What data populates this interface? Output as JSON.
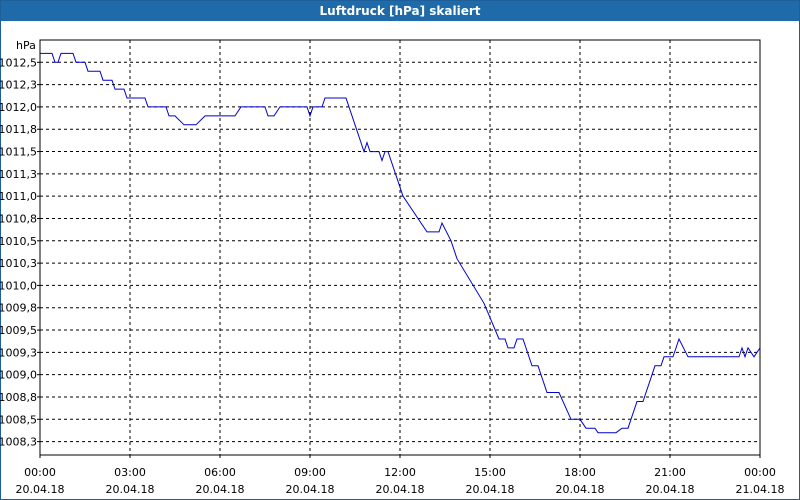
{
  "window": {
    "title": "Luftdruck [hPa] skaliert"
  },
  "chart_data": {
    "type": "line",
    "title": "Luftdruck [hPa] skaliert",
    "ylabel": "hPa",
    "xlabel": "",
    "ylim": [
      1008.1,
      1012.75
    ],
    "xlim": [
      0,
      24
    ],
    "grid": true,
    "line_color": "#0000cc",
    "grid_color": "#000000",
    "y_ticks": [
      {
        "value": 1012.5,
        "label": "1012,5"
      },
      {
        "value": 1012.25,
        "label": "1012,3"
      },
      {
        "value": 1012.0,
        "label": "1012,0"
      },
      {
        "value": 1011.75,
        "label": "1011,8"
      },
      {
        "value": 1011.5,
        "label": "1011,5"
      },
      {
        "value": 1011.25,
        "label": "1011,3"
      },
      {
        "value": 1011.0,
        "label": "1011,0"
      },
      {
        "value": 1010.75,
        "label": "1010,8"
      },
      {
        "value": 1010.5,
        "label": "1010,5"
      },
      {
        "value": 1010.25,
        "label": "1010,3"
      },
      {
        "value": 1010.0,
        "label": "1010,0"
      },
      {
        "value": 1009.75,
        "label": "1009,8"
      },
      {
        "value": 1009.5,
        "label": "1009,5"
      },
      {
        "value": 1009.25,
        "label": "1009,3"
      },
      {
        "value": 1009.0,
        "label": "1009,0"
      },
      {
        "value": 1008.75,
        "label": "1008,8"
      },
      {
        "value": 1008.5,
        "label": "1008,5"
      },
      {
        "value": 1008.25,
        "label": "1008,3"
      }
    ],
    "x_ticks": [
      {
        "value": 0,
        "time": "00:00",
        "date": "20.04.18"
      },
      {
        "value": 3,
        "time": "03:00",
        "date": "20.04.18"
      },
      {
        "value": 6,
        "time": "06:00",
        "date": "20.04.18"
      },
      {
        "value": 9,
        "time": "09:00",
        "date": "20.04.18"
      },
      {
        "value": 12,
        "time": "12:00",
        "date": "20.04.18"
      },
      {
        "value": 15,
        "time": "15:00",
        "date": "20.04.18"
      },
      {
        "value": 18,
        "time": "18:00",
        "date": "20.04.18"
      },
      {
        "value": 21,
        "time": "21:00",
        "date": "20.04.18"
      },
      {
        "value": 24,
        "time": "00:00",
        "date": "21.04.18"
      }
    ],
    "series": [
      {
        "points": [
          [
            0,
            1012.6
          ],
          [
            0.4,
            1012.6
          ],
          [
            0.5,
            1012.5
          ],
          [
            0.6,
            1012.5
          ],
          [
            0.7,
            1012.6
          ],
          [
            1.1,
            1012.6
          ],
          [
            1.2,
            1012.5
          ],
          [
            1.5,
            1012.5
          ],
          [
            1.6,
            1012.4
          ],
          [
            2.0,
            1012.4
          ],
          [
            2.1,
            1012.3
          ],
          [
            2.4,
            1012.3
          ],
          [
            2.5,
            1012.2
          ],
          [
            2.8,
            1012.2
          ],
          [
            2.9,
            1012.1
          ],
          [
            3.5,
            1012.1
          ],
          [
            3.6,
            1012.0
          ],
          [
            4.2,
            1012.0
          ],
          [
            4.3,
            1011.9
          ],
          [
            4.5,
            1011.9
          ],
          [
            4.8,
            1011.8
          ],
          [
            5.2,
            1011.8
          ],
          [
            5.5,
            1011.9
          ],
          [
            6.5,
            1011.9
          ],
          [
            6.7,
            1012.0
          ],
          [
            7.5,
            1012.0
          ],
          [
            7.6,
            1011.9
          ],
          [
            7.8,
            1011.9
          ],
          [
            8.0,
            1012.0
          ],
          [
            8.9,
            1012.0
          ],
          [
            9.0,
            1011.9
          ],
          [
            9.1,
            1012.0
          ],
          [
            9.4,
            1012.0
          ],
          [
            9.5,
            1012.1
          ],
          [
            10.2,
            1012.1
          ],
          [
            10.6,
            1011.7
          ],
          [
            10.7,
            1011.6
          ],
          [
            10.8,
            1011.5
          ],
          [
            10.9,
            1011.6
          ],
          [
            11.0,
            1011.5
          ],
          [
            11.3,
            1011.5
          ],
          [
            11.4,
            1011.4
          ],
          [
            11.5,
            1011.5
          ],
          [
            11.6,
            1011.5
          ],
          [
            11.9,
            1011.2
          ],
          [
            12.1,
            1011.0
          ],
          [
            12.9,
            1010.6
          ],
          [
            13.3,
            1010.6
          ],
          [
            13.4,
            1010.7
          ],
          [
            13.7,
            1010.5
          ],
          [
            13.9,
            1010.3
          ],
          [
            14.8,
            1009.8
          ],
          [
            15.3,
            1009.4
          ],
          [
            15.5,
            1009.4
          ],
          [
            15.6,
            1009.3
          ],
          [
            15.8,
            1009.3
          ],
          [
            15.9,
            1009.4
          ],
          [
            16.1,
            1009.4
          ],
          [
            16.4,
            1009.1
          ],
          [
            16.6,
            1009.1
          ],
          [
            16.9,
            1008.8
          ],
          [
            17.3,
            1008.8
          ],
          [
            17.7,
            1008.5
          ],
          [
            18.0,
            1008.5
          ],
          [
            18.2,
            1008.4
          ],
          [
            18.5,
            1008.4
          ],
          [
            18.6,
            1008.35
          ],
          [
            19.2,
            1008.35
          ],
          [
            19.4,
            1008.4
          ],
          [
            19.6,
            1008.4
          ],
          [
            19.9,
            1008.7
          ],
          [
            20.1,
            1008.7
          ],
          [
            20.5,
            1009.1
          ],
          [
            20.7,
            1009.1
          ],
          [
            20.8,
            1009.2
          ],
          [
            21.1,
            1009.2
          ],
          [
            21.2,
            1009.3
          ],
          [
            21.3,
            1009.4
          ],
          [
            21.6,
            1009.2
          ],
          [
            23.3,
            1009.2
          ],
          [
            23.4,
            1009.3
          ],
          [
            23.5,
            1009.2
          ],
          [
            23.6,
            1009.3
          ],
          [
            23.8,
            1009.2
          ],
          [
            24.0,
            1009.3
          ]
        ]
      }
    ]
  }
}
